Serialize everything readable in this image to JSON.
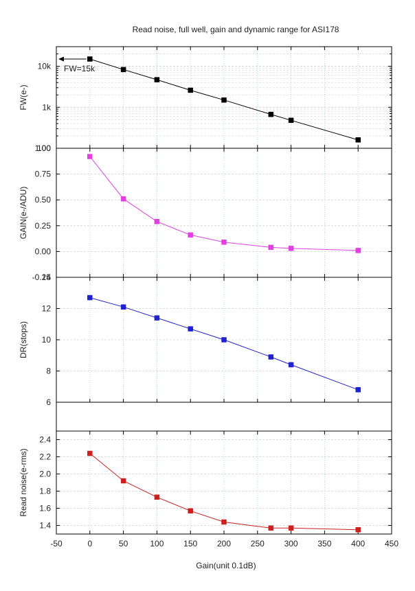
{
  "chart_data": {
    "title": "Read noise, full well, gain and dynamic range for ASI178",
    "xlabel": "Gain(unit 0.1dB)",
    "xlim": [
      -50,
      450
    ],
    "xticks": [
      "-50",
      "0",
      "50",
      "100",
      "150",
      "200",
      "250",
      "300",
      "350",
      "400",
      "450"
    ],
    "grid": true,
    "panels": [
      {
        "type": "line",
        "scale": "log",
        "ylabel": "FW(e-)",
        "ylim": [
          100,
          30000
        ],
        "yticks": [
          "100",
          "1k",
          "10k"
        ],
        "marker": "square",
        "color": "#000000",
        "series": [
          {
            "x": [
              0,
              50,
              100,
              150,
              200,
              270,
              300,
              400
            ],
            "y": [
              15000,
              8300,
              4700,
              2600,
              1500,
              670,
              480,
              160
            ]
          }
        ],
        "annotation": "FW=15k"
      },
      {
        "type": "line",
        "ylabel": "GAIN(e-/ADU)",
        "ylim": [
          -0.25,
          1.0
        ],
        "yticks": [
          "-0.25",
          "0.00",
          "0.25",
          "0.50",
          "0.75",
          "1.00"
        ],
        "marker": "square",
        "color": "#e040e0",
        "series": [
          {
            "x": [
              0,
              50,
              100,
              150,
              200,
              270,
              300,
              400
            ],
            "y": [
              0.92,
              0.51,
              0.29,
              0.16,
              0.09,
              0.04,
              0.03,
              0.01
            ]
          }
        ]
      },
      {
        "type": "line",
        "ylabel": "DR(stops)",
        "ylim": [
          6,
          14
        ],
        "yticks": [
          "6",
          "8",
          "10",
          "12",
          "14"
        ],
        "marker": "square",
        "color": "#2222cc",
        "series": [
          {
            "x": [
              0,
              50,
              100,
              150,
              200,
              270,
              300,
              400
            ],
            "y": [
              12.7,
              12.1,
              11.4,
              10.7,
              10.0,
              8.9,
              8.4,
              6.8
            ]
          }
        ]
      },
      {
        "type": "line",
        "ylabel": "Read noise(e-rms)",
        "ylim": [
          1.3,
          2.5
        ],
        "yticks": [
          "1.4",
          "1.6",
          "1.8",
          "2.0",
          "2.2",
          "2.4"
        ],
        "marker": "square",
        "color": "#cc2020",
        "series": [
          {
            "x": [
              0,
              50,
              100,
              150,
              200,
              270,
              300,
              400
            ],
            "y": [
              2.24,
              1.92,
              1.73,
              1.57,
              1.44,
              1.37,
              1.37,
              1.35
            ]
          }
        ]
      }
    ]
  }
}
